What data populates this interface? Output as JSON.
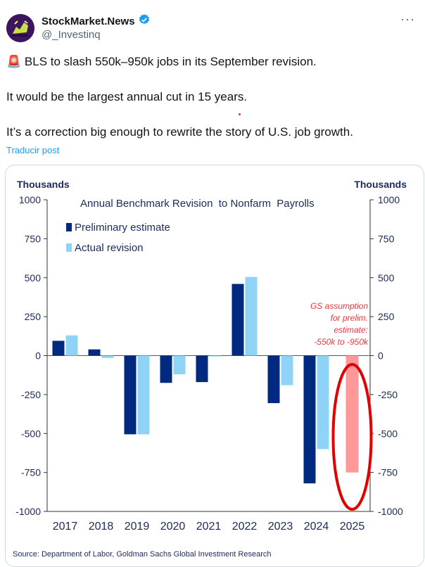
{
  "author": {
    "display_name": "StockMarket.News",
    "handle": "@_Investinq",
    "verified": true,
    "avatar_icon": "bull-avatar-icon",
    "accent": "#1d9bf0"
  },
  "post": {
    "siren_icon": "🚨",
    "line1": "BLS to slash 550k–950k jobs in its September revision.",
    "line2": "It would be the largest annual cut in 15 years.",
    "line3": "It’s a correction big enough to rewrite the story of U.S. job growth.",
    "translate_label": "Traducir post"
  },
  "chart_data": {
    "type": "bar",
    "title": "Annual Benchmark Revision  to Nonfarm  Payrolls",
    "left_axis_unit": "Thousands",
    "right_axis_unit": "Thousands",
    "categories": [
      "2017",
      "2018",
      "2019",
      "2020",
      "2021",
      "2022",
      "2023",
      "2024",
      "2025"
    ],
    "ylim": [
      -1000,
      1000
    ],
    "yticks": [
      1000,
      750,
      500,
      250,
      0,
      -250,
      -500,
      -750,
      -1000
    ],
    "ytick_labels": [
      "1000",
      "750",
      "500",
      "250",
      "0",
      "-250",
      "-500",
      "-750",
      "-1000"
    ],
    "series": [
      {
        "name": "Preliminary estimate",
        "color": "#002a7f",
        "values": [
          95,
          40,
          -505,
          -175,
          -170,
          460,
          -305,
          -820,
          null
        ]
      },
      {
        "name": "Actual revision",
        "color": "#8fd3f7",
        "values": [
          130,
          -15,
          -505,
          -120,
          -5,
          505,
          -190,
          -600,
          null
        ]
      }
    ],
    "assumption_bar": {
      "category": "2025",
      "value": -750,
      "color": "#ff9999"
    },
    "annotation": {
      "lines": [
        "GS assumption",
        "for prelim.",
        "estimate:",
        "-550k to -950k"
      ],
      "color": "#e8383d"
    },
    "highlight_color": "#e00000",
    "legend_position": "top-left",
    "source": "Source: Department of Labor, Goldman Sachs Global Investment Research"
  }
}
